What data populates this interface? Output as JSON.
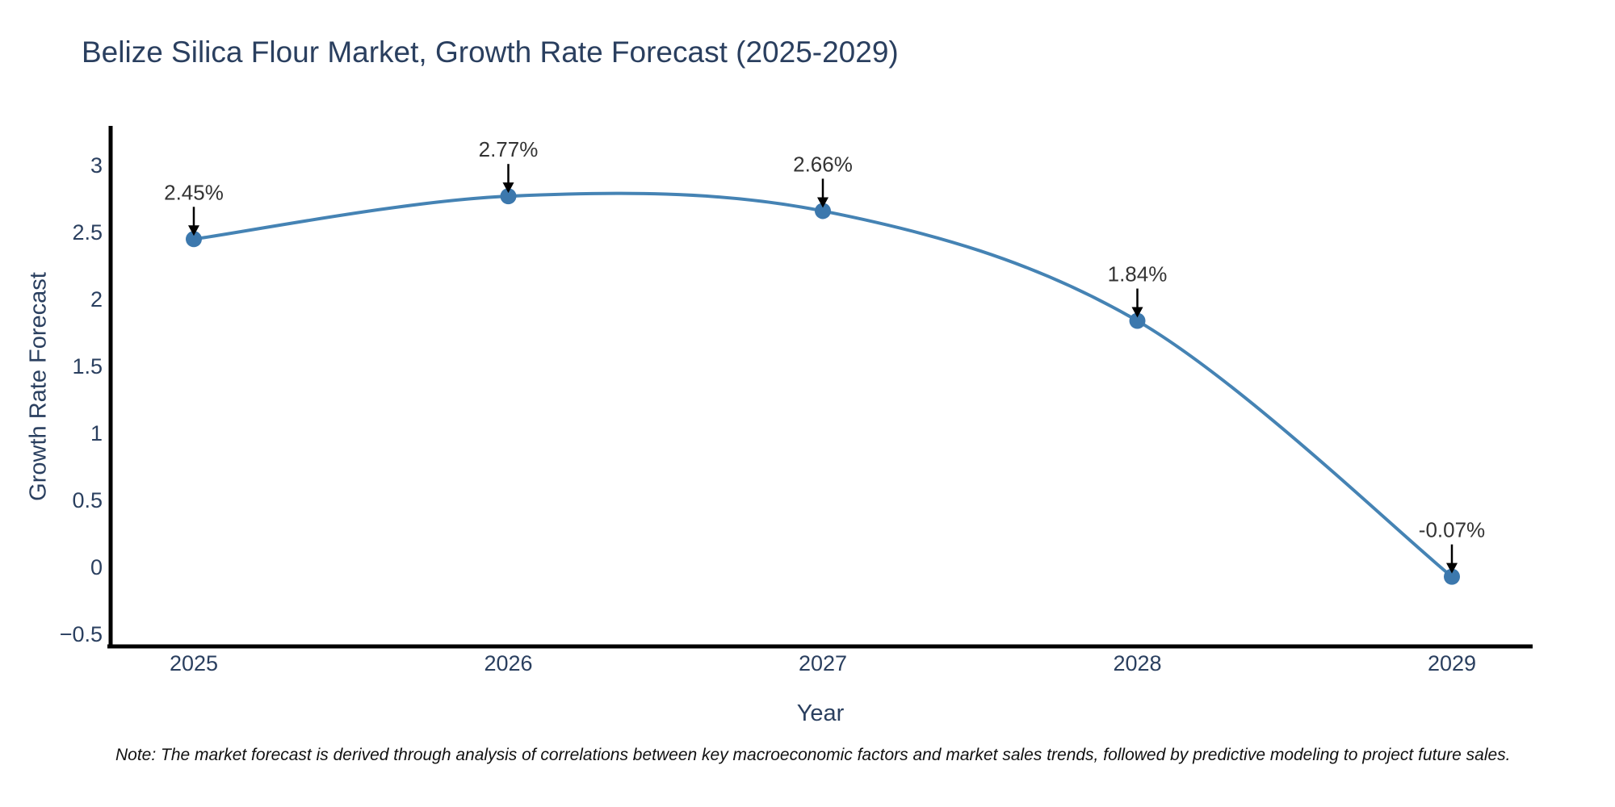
{
  "page": {
    "background": "#ffffff"
  },
  "chart_data": {
    "type": "line",
    "title": "Belize Silica Flour Market, Growth Rate Forecast (2025-2029)",
    "xlabel": "Year",
    "ylabel": "Growth Rate Forecast",
    "x": [
      2025,
      2026,
      2027,
      2028,
      2029
    ],
    "values": [
      2.45,
      2.77,
      2.66,
      1.84,
      -0.07
    ],
    "point_labels": [
      "2.45%",
      "2.77%",
      "2.66%",
      "1.84%",
      "-0.07%"
    ],
    "ylim": [
      -0.5,
      3.2
    ],
    "yticks": [
      3,
      2.5,
      2,
      1.5,
      1,
      0.5,
      0,
      -0.5
    ],
    "grid": false,
    "legend": "none",
    "line_color": "#4583b4",
    "marker_color": "#3c78ad",
    "annotation_text_color": "#333333",
    "annotation_arrow_color": "#000000",
    "axis_color": "#000000",
    "tick_label_color": "#2a3f5f"
  },
  "footnote": {
    "text": "Note: The market forecast is derived through analysis of correlations between key macroeconomic factors and market sales trends, followed by predictive modeling to project future sales."
  }
}
